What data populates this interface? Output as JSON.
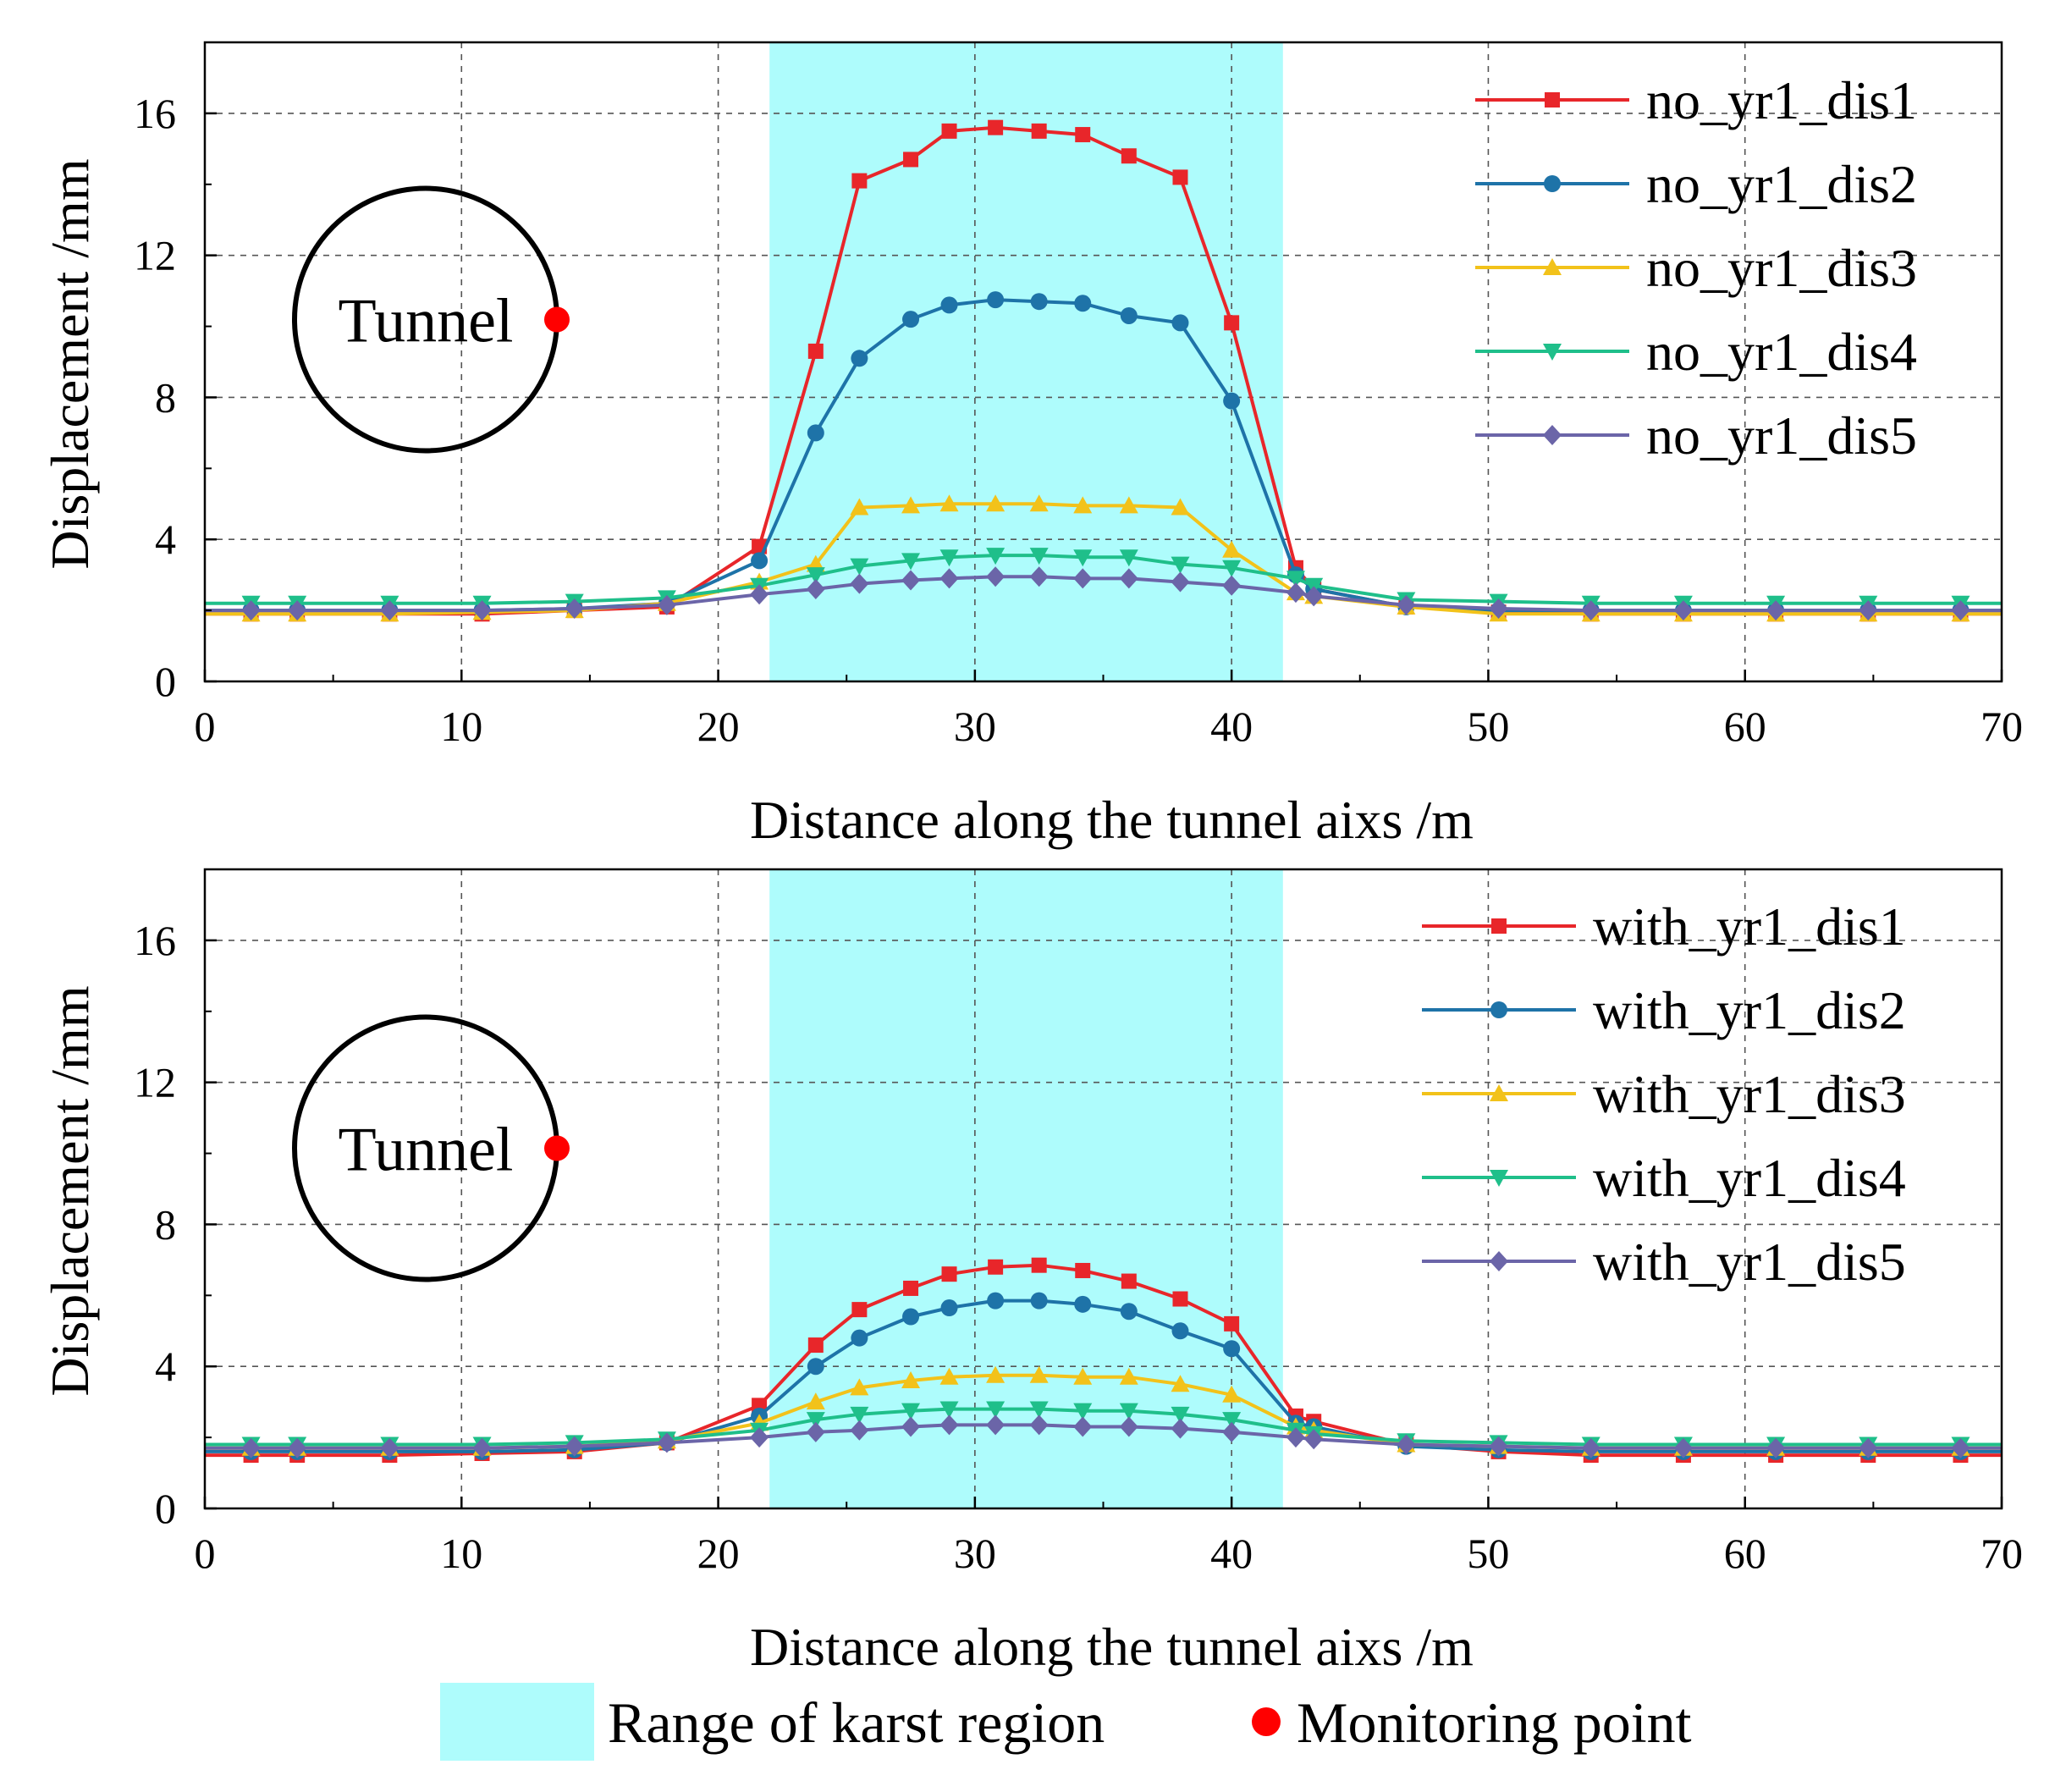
{
  "colors": {
    "karst": "#aefcfc",
    "monitor": "#ff0000",
    "s1": "#e8262a",
    "s2": "#1e73a8",
    "s3": "#f2c21a",
    "s4": "#1fbf8a",
    "s5": "#6b65a8"
  },
  "figure_legend": {
    "karst_label": "Range of karst region",
    "monitor_label": "Monitoring point"
  },
  "chart_data": [
    {
      "type": "line",
      "panel": "top",
      "xlabel": "Distance along the tunnel aixs /m",
      "ylabel": "Displacement /mm",
      "xlim": [
        0,
        70
      ],
      "ylim": [
        0,
        18
      ],
      "xticks": [
        0,
        10,
        20,
        30,
        40,
        50,
        60,
        70
      ],
      "yticks": [
        0,
        4,
        8,
        12,
        16
      ],
      "grid": true,
      "legend_position": "top-right",
      "karst_region": [
        22,
        42
      ],
      "inset": {
        "circle_label": "Tunnel",
        "marker": "monitoring point on the right side of the tunnel"
      },
      "x": [
        0,
        1.8,
        3.6,
        7.2,
        10.8,
        14.4,
        18,
        21.6,
        23.8,
        25.5,
        27.5,
        29,
        30.8,
        32.5,
        34.2,
        36,
        38,
        40,
        42.5,
        43.2,
        46.8,
        50.4,
        54,
        57.6,
        61.2,
        64.8,
        68.4,
        70
      ],
      "series": [
        {
          "name": "no_yr1_dis1",
          "marker": "square",
          "color_key": "s1",
          "values": [
            1.9,
            1.9,
            1.9,
            1.9,
            1.9,
            2.0,
            2.1,
            3.8,
            9.3,
            14.1,
            14.7,
            15.5,
            15.6,
            15.5,
            15.4,
            14.8,
            14.2,
            10.1,
            3.2,
            2.6,
            2.1,
            1.95,
            1.9,
            1.9,
            1.9,
            1.9,
            1.9,
            1.9
          ]
        },
        {
          "name": "no_yr1_dis2",
          "marker": "circle",
          "color_key": "s2",
          "values": [
            2.0,
            2.0,
            2.0,
            2.0,
            2.0,
            2.05,
            2.2,
            3.4,
            7.0,
            9.1,
            10.2,
            10.6,
            10.75,
            10.7,
            10.65,
            10.3,
            10.1,
            7.9,
            3.0,
            2.6,
            2.1,
            2.0,
            2.0,
            2.0,
            2.0,
            2.0,
            2.0,
            2.0
          ]
        },
        {
          "name": "no_yr1_dis3",
          "marker": "triangle-up",
          "color_key": "s3",
          "values": [
            1.9,
            1.9,
            1.9,
            1.9,
            1.95,
            2.0,
            2.2,
            2.8,
            3.3,
            4.9,
            4.95,
            5.0,
            5.0,
            5.0,
            4.95,
            4.95,
            4.9,
            3.7,
            2.5,
            2.4,
            2.1,
            1.9,
            1.9,
            1.9,
            1.9,
            1.9,
            1.9,
            1.9
          ]
        },
        {
          "name": "no_yr1_dis4",
          "marker": "triangle-down",
          "color_key": "s4",
          "values": [
            2.2,
            2.2,
            2.2,
            2.2,
            2.2,
            2.25,
            2.35,
            2.7,
            3.0,
            3.25,
            3.4,
            3.5,
            3.55,
            3.55,
            3.5,
            3.5,
            3.3,
            3.2,
            2.9,
            2.7,
            2.3,
            2.25,
            2.2,
            2.2,
            2.2,
            2.2,
            2.2,
            2.2
          ]
        },
        {
          "name": "no_yr1_dis5",
          "marker": "diamond",
          "color_key": "s5",
          "values": [
            2.0,
            2.0,
            2.0,
            2.0,
            2.0,
            2.05,
            2.15,
            2.45,
            2.6,
            2.75,
            2.85,
            2.9,
            2.95,
            2.95,
            2.9,
            2.9,
            2.8,
            2.7,
            2.5,
            2.4,
            2.15,
            2.05,
            2.0,
            2.0,
            2.0,
            2.0,
            2.0,
            2.0
          ]
        }
      ]
    },
    {
      "type": "line",
      "panel": "bottom",
      "xlabel": "Distance along the tunnel aixs /m",
      "ylabel": "Displacement /mm",
      "xlim": [
        0,
        70
      ],
      "ylim": [
        0,
        18
      ],
      "xticks": [
        0,
        10,
        20,
        30,
        40,
        50,
        60,
        70
      ],
      "yticks": [
        0,
        4,
        8,
        12,
        16
      ],
      "grid": true,
      "legend_position": "top-right",
      "karst_region": [
        22,
        42
      ],
      "inset": {
        "circle_label": "Tunnel",
        "marker": "monitoring point on the right side of the tunnel"
      },
      "x": [
        0,
        1.8,
        3.6,
        7.2,
        10.8,
        14.4,
        18,
        21.6,
        23.8,
        25.5,
        27.5,
        29,
        30.8,
        32.5,
        34.2,
        36,
        38,
        40,
        42.5,
        43.2,
        46.8,
        50.4,
        54,
        57.6,
        61.2,
        64.8,
        68.4,
        70
      ],
      "series": [
        {
          "name": "with_yr1_dis1",
          "marker": "square",
          "color_key": "s1",
          "values": [
            1.5,
            1.5,
            1.5,
            1.5,
            1.55,
            1.6,
            1.85,
            2.9,
            4.6,
            5.6,
            6.2,
            6.6,
            6.8,
            6.85,
            6.7,
            6.4,
            5.9,
            5.2,
            2.6,
            2.45,
            1.8,
            1.6,
            1.5,
            1.5,
            1.5,
            1.5,
            1.5,
            1.5
          ]
        },
        {
          "name": "with_yr1_dis2",
          "marker": "circle",
          "color_key": "s2",
          "values": [
            1.6,
            1.6,
            1.6,
            1.6,
            1.6,
            1.65,
            1.85,
            2.6,
            4.0,
            4.8,
            5.4,
            5.65,
            5.85,
            5.85,
            5.75,
            5.55,
            5.0,
            4.5,
            2.4,
            2.3,
            1.75,
            1.65,
            1.6,
            1.6,
            1.6,
            1.6,
            1.6,
            1.6
          ]
        },
        {
          "name": "with_yr1_dis3",
          "marker": "triangle-up",
          "color_key": "s3",
          "values": [
            1.7,
            1.7,
            1.7,
            1.7,
            1.7,
            1.75,
            1.9,
            2.4,
            3.0,
            3.4,
            3.6,
            3.7,
            3.75,
            3.75,
            3.7,
            3.7,
            3.5,
            3.2,
            2.3,
            2.2,
            1.8,
            1.75,
            1.7,
            1.7,
            1.7,
            1.7,
            1.7,
            1.7
          ]
        },
        {
          "name": "with_yr1_dis4",
          "marker": "triangle-down",
          "color_key": "s4",
          "values": [
            1.8,
            1.8,
            1.8,
            1.8,
            1.8,
            1.85,
            1.95,
            2.2,
            2.5,
            2.65,
            2.75,
            2.8,
            2.8,
            2.8,
            2.75,
            2.75,
            2.65,
            2.5,
            2.2,
            2.1,
            1.9,
            1.85,
            1.8,
            1.8,
            1.8,
            1.8,
            1.8,
            1.8
          ]
        },
        {
          "name": "with_yr1_dis5",
          "marker": "diamond",
          "color_key": "s5",
          "values": [
            1.7,
            1.7,
            1.7,
            1.7,
            1.7,
            1.75,
            1.85,
            2.0,
            2.15,
            2.2,
            2.3,
            2.35,
            2.35,
            2.35,
            2.3,
            2.3,
            2.25,
            2.15,
            2.0,
            1.95,
            1.8,
            1.75,
            1.7,
            1.7,
            1.7,
            1.7,
            1.7,
            1.7
          ]
        }
      ]
    }
  ]
}
